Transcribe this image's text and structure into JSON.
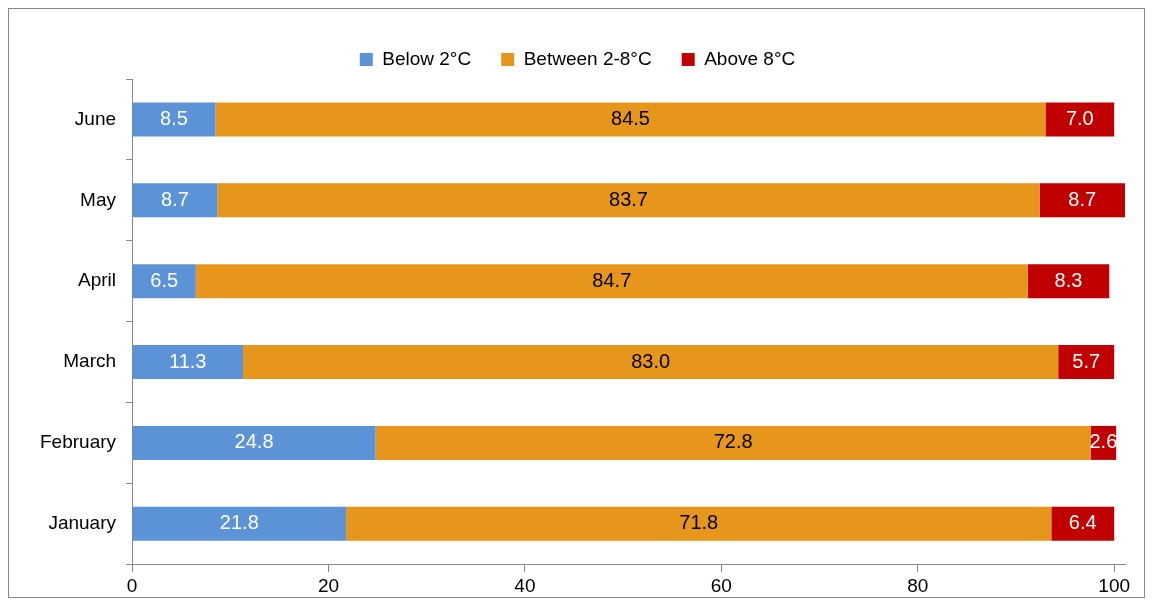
{
  "chart_data": {
    "type": "bar",
    "orientation": "horizontal",
    "stacked": true,
    "categories": [
      "June",
      "May",
      "April",
      "March",
      "February",
      "January"
    ],
    "series": [
      {
        "name": "Below 2°C",
        "color": "#5b93d6",
        "values": [
          8.5,
          8.7,
          6.5,
          11.3,
          24.8,
          21.8
        ],
        "value_labels": [
          "8.5",
          "8.7",
          "6.5",
          "11.3",
          "24.8",
          "21.8"
        ]
      },
      {
        "name": "Between 2-8°C",
        "color": "#e6961a",
        "values": [
          84.5,
          83.7,
          84.7,
          83.0,
          72.8,
          71.8
        ],
        "value_labels": [
          "84.5",
          "83.7",
          "84.7",
          "83.0",
          "72.8",
          "71.8"
        ]
      },
      {
        "name": "Above 8°C",
        "color": "#c00000",
        "values": [
          7.0,
          8.7,
          8.3,
          5.7,
          2.6,
          6.4
        ],
        "value_labels": [
          "7.0",
          "8.7",
          "8.3",
          "5.7",
          "2.6",
          "6.4"
        ]
      }
    ],
    "xlim": [
      0,
      101.1
    ],
    "xticks": [
      0,
      20,
      40,
      60,
      80,
      100
    ],
    "grid": false,
    "legend": "top"
  }
}
